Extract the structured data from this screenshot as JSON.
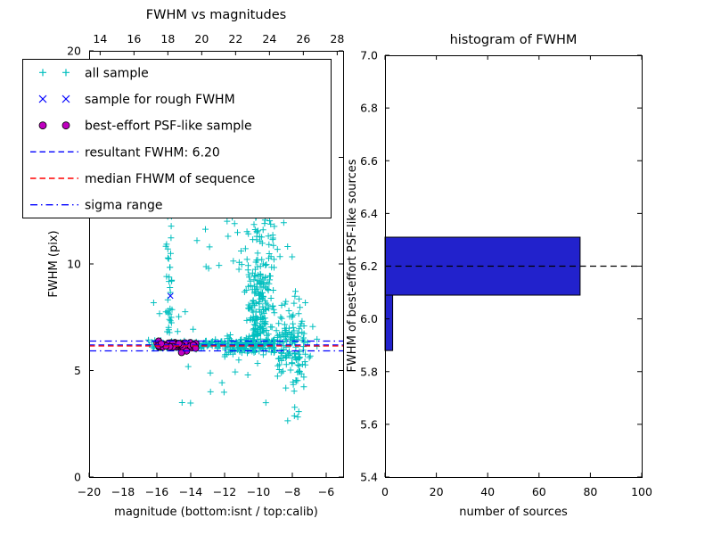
{
  "figure": {
    "background": "#ffffff"
  },
  "chart_data": [
    {
      "id": "fwhm-vs-magnitudes",
      "type": "scatter",
      "title": "FWHM vs magnitudes",
      "xlabel": "magnitude (bottom:isnt / top:calib)",
      "ylabel": "FWHM (pix)",
      "xlim": [
        -20,
        -5
      ],
      "top_xlim": [
        13.35,
        28.35
      ],
      "ylim": [
        0,
        20
      ],
      "grid": false,
      "legend_position": "upper left",
      "xticks": {
        "values": [
          -20,
          -18,
          -16,
          -14,
          -12,
          -10,
          -8,
          -6
        ],
        "labels": [
          "−20",
          "−18",
          "−16",
          "−14",
          "−12",
          "−10",
          "−8",
          "−6"
        ]
      },
      "top_xticks": {
        "values": [
          14,
          16,
          18,
          20,
          22,
          24,
          26,
          28
        ],
        "labels": [
          "14",
          "16",
          "18",
          "20",
          "22",
          "24",
          "26",
          "28"
        ]
      },
      "yticks": {
        "values": [
          0,
          5,
          10,
          15,
          20
        ],
        "labels": [
          "0",
          "5",
          "10",
          "15",
          "20"
        ]
      },
      "hlines": [
        {
          "name": "resultant-fwhm",
          "y": 6.2,
          "color": "#0000ff",
          "style": "dashed"
        },
        {
          "name": "median-fwhm",
          "y": 6.15,
          "color": "#ff0000",
          "style": "dashed"
        },
        {
          "name": "sigma-upper",
          "y": 6.38,
          "color": "#0000ff",
          "style": "dashdot"
        },
        {
          "name": "sigma-lower",
          "y": 5.92,
          "color": "#0000ff",
          "style": "dashdot"
        }
      ],
      "series": [
        {
          "name": "all sample",
          "marker": "plus",
          "color": "#00bfbf",
          "seed": 7,
          "clusters": [
            {
              "n": 120,
              "x": {
                "type": "uniform",
                "min": -16.55,
                "max": -12.0
              },
              "y": {
                "type": "normal",
                "mean": 6.2,
                "sd": 0.1
              }
            },
            {
              "n": 170,
              "x": {
                "type": "uniform",
                "min": -12.0,
                "max": -9.0
              },
              "y": {
                "type": "normal",
                "mean": 6.2,
                "sd": 0.22
              }
            },
            {
              "n": 130,
              "x": {
                "type": "uniform",
                "min": -8.9,
                "max": -7.2
              },
              "y": {
                "type": "normal",
                "mean": 6.35,
                "sd": 0.95
              }
            },
            {
              "n": 40,
              "x": {
                "type": "normal",
                "mean": -15.3,
                "sd": 0.13
              },
              "y": {
                "type": "uniform",
                "min": 6.6,
                "max": 14.5
              }
            },
            {
              "n": 150,
              "x": {
                "type": "normal",
                "mean": -9.9,
                "sd": 0.35
              },
              "y": {
                "type": "uniform",
                "min": 6.6,
                "max": 9.5
              }
            },
            {
              "n": 120,
              "x": {
                "type": "normal",
                "mean": -9.95,
                "sd": 0.65
              },
              "y": {
                "type": "uniform",
                "min": 9.5,
                "max": 14.5
              }
            },
            {
              "n": 18,
              "x": {
                "type": "uniform",
                "min": -14.6,
                "max": -7.3
              },
              "y": {
                "type": "uniform",
                "min": 3.4,
                "max": 5.6
              }
            },
            {
              "n": 4,
              "x": {
                "type": "uniform",
                "min": -8.6,
                "max": -7.6
              },
              "y": {
                "type": "uniform",
                "min": 2.6,
                "max": 3.4
              }
            },
            {
              "n": 12,
              "x": {
                "type": "uniform",
                "min": -13.8,
                "max": -11.0
              },
              "y": {
                "type": "uniform",
                "min": 9.5,
                "max": 14.2
              }
            },
            {
              "n": 8,
              "x": {
                "type": "uniform",
                "min": -16.2,
                "max": -13.5
              },
              "y": {
                "type": "uniform",
                "min": 6.5,
                "max": 8.5
              }
            },
            {
              "n": 6,
              "x": {
                "type": "uniform",
                "min": -7.2,
                "max": -6.5
              },
              "y": {
                "type": "normal",
                "mean": 6.3,
                "sd": 0.5
              }
            }
          ]
        },
        {
          "name": "sample for rough FWHM",
          "marker": "x",
          "color": "#0000ff",
          "points": [
            [
              -15.2,
              8.5
            ],
            [
              -15.85,
              6.22
            ],
            [
              -15.35,
              6.17
            ],
            [
              -14.9,
              6.24
            ],
            [
              -14.4,
              6.14
            ],
            [
              -13.95,
              6.2
            ]
          ]
        },
        {
          "name": "best-effort PSF-like sample",
          "marker": "circle",
          "color": "#bf00bf",
          "edge": "#000000",
          "seed": 11,
          "clusters": [
            {
              "n": 60,
              "x": {
                "type": "uniform",
                "min": -16.05,
                "max": -13.65
              },
              "y": {
                "type": "normal",
                "mean": 6.18,
                "sd": 0.09
              }
            }
          ]
        }
      ],
      "legend": {
        "entries": [
          {
            "label": "all sample",
            "swatch": "plus",
            "color": "#00bfbf"
          },
          {
            "label": "sample for rough FWHM",
            "swatch": "x",
            "color": "#0000ff"
          },
          {
            "label": "best-effort PSF-like sample",
            "swatch": "circle",
            "color": "#bf00bf"
          },
          {
            "label": "resultant FWHM: 6.20",
            "swatch": "dashed",
            "color": "#0000ff"
          },
          {
            "label": "median FHWM of sequence",
            "swatch": "dashed",
            "color": "#ff0000"
          },
          {
            "label": "sigma range",
            "swatch": "dashdot",
            "color": "#0000ff"
          }
        ]
      }
    },
    {
      "id": "histogram-of-fwhm",
      "type": "bar",
      "orientation": "horizontal",
      "title": "histogram of FWHM",
      "xlabel": "number of sources",
      "ylabel": "FWHM of best-effort PSF-like sources",
      "xlim": [
        0,
        100
      ],
      "ylim": [
        5.4,
        7.0
      ],
      "grid": false,
      "xticks": {
        "values": [
          0,
          20,
          40,
          60,
          80,
          100
        ],
        "labels": [
          "0",
          "20",
          "40",
          "60",
          "80",
          "100"
        ]
      },
      "yticks": {
        "values": [
          5.4,
          5.6,
          5.8,
          6.0,
          6.2,
          6.4,
          6.6,
          6.8,
          7.0
        ],
        "labels": [
          "5.4",
          "5.6",
          "5.8",
          "6.0",
          "6.2",
          "6.4",
          "6.6",
          "6.8",
          "7.0"
        ]
      },
      "bar_color": "#2222cc",
      "bins": [
        {
          "from": 5.88,
          "to": 6.09,
          "count": 3
        },
        {
          "from": 6.09,
          "to": 6.31,
          "count": 76
        }
      ],
      "hlines": [
        {
          "name": "resultant-fwhm",
          "y": 6.2,
          "color": "#000000",
          "style": "dashed"
        }
      ]
    }
  ]
}
